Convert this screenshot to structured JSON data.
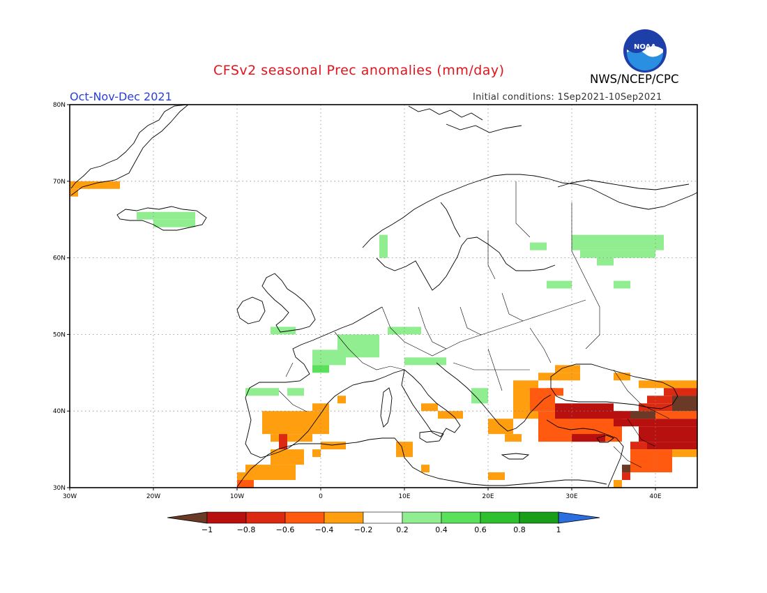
{
  "header": {
    "title": "CFSv2 seasonal Prec anomalies (mm/day)",
    "season": "Oct-Nov-Dec 2021",
    "initial_conditions": "Initial conditions: 1Sep2021-10Sep2021",
    "agency": "NWS/NCEP/CPC",
    "logo_text": "NOAA"
  },
  "map": {
    "projection": "equirectangular",
    "lon_range": [
      -30,
      45
    ],
    "lat_range": [
      30,
      80
    ],
    "lon_ticks": [
      {
        "value": -30,
        "label": "30W"
      },
      {
        "value": -20,
        "label": "20W"
      },
      {
        "value": -10,
        "label": "10W"
      },
      {
        "value": 0,
        "label": "0"
      },
      {
        "value": 10,
        "label": "10E"
      },
      {
        "value": 20,
        "label": "20E"
      },
      {
        "value": 30,
        "label": "30E"
      },
      {
        "value": 40,
        "label": "40E"
      }
    ],
    "lat_ticks": [
      {
        "value": 30,
        "label": "30N"
      },
      {
        "value": 40,
        "label": "40N"
      },
      {
        "value": 50,
        "label": "50N"
      },
      {
        "value": 60,
        "label": "60N"
      },
      {
        "value": 70,
        "label": "70N"
      },
      {
        "value": 80,
        "label": "80N"
      }
    ],
    "grid": "dotted"
  },
  "legend": {
    "labels": [
      "-1",
      "-0.8",
      "-0.6",
      "-0.4",
      "-0.2",
      "0.2",
      "0.4",
      "0.6",
      "0.8",
      "1"
    ],
    "colors": [
      "#6b3a26",
      "#b80f0f",
      "#dc2a12",
      "#ff5a10",
      "#ff9f10",
      "#ffffff",
      "#90ee90",
      "#5ae05a",
      "#2ec02e",
      "#1a9e1a",
      "#2a6ee0"
    ]
  },
  "anomalies": [
    {
      "lon": -30,
      "lat": 69,
      "w": 6,
      "h": 1,
      "v": -0.3
    },
    {
      "lon": -30,
      "lat": 68,
      "w": 1,
      "h": 1,
      "v": -0.3
    },
    {
      "lon": -22,
      "lat": 65,
      "w": 7,
      "h": 1,
      "v": 0.3
    },
    {
      "lon": -20,
      "lat": 64,
      "w": 5,
      "h": 1,
      "v": 0.3
    },
    {
      "lon": 7,
      "lat": 60,
      "w": 1,
      "h": 3,
      "v": 0.3
    },
    {
      "lon": 25,
      "lat": 61,
      "w": 2,
      "h": 1,
      "v": 0.3
    },
    {
      "lon": 30,
      "lat": 61,
      "w": 11,
      "h": 2,
      "v": 0.3
    },
    {
      "lon": 31,
      "lat": 60,
      "w": 9,
      "h": 1,
      "v": 0.3
    },
    {
      "lon": 33,
      "lat": 59,
      "w": 2,
      "h": 1,
      "v": 0.3
    },
    {
      "lon": 27,
      "lat": 56,
      "w": 3,
      "h": 1,
      "v": 0.3
    },
    {
      "lon": 35,
      "lat": 56,
      "w": 2,
      "h": 1,
      "v": 0.3
    },
    {
      "lon": -6,
      "lat": 50,
      "w": 3,
      "h": 1,
      "v": 0.3
    },
    {
      "lon": 2,
      "lat": 47,
      "w": 5,
      "h": 3,
      "v": 0.3
    },
    {
      "lon": -1,
      "lat": 46,
      "w": 4,
      "h": 2,
      "v": 0.3
    },
    {
      "lon": 8,
      "lat": 50,
      "w": 4,
      "h": 1,
      "v": 0.3
    },
    {
      "lon": 10,
      "lat": 46,
      "w": 5,
      "h": 1,
      "v": 0.3
    },
    {
      "lon": -1,
      "lat": 45,
      "w": 2,
      "h": 1,
      "v": 0.5
    },
    {
      "lon": -9,
      "lat": 42,
      "w": 4,
      "h": 1,
      "v": 0.3
    },
    {
      "lon": -4,
      "lat": 42,
      "w": 2,
      "h": 1,
      "v": 0.3
    },
    {
      "lon": 18,
      "lat": 41,
      "w": 2,
      "h": 2,
      "v": 0.3
    },
    {
      "lon": -1,
      "lat": 40,
      "w": 2,
      "h": 1,
      "v": -0.3
    },
    {
      "lon": 2,
      "lat": 41,
      "w": 1,
      "h": 1,
      "v": -0.3
    },
    {
      "lon": -7,
      "lat": 37,
      "w": 8,
      "h": 3,
      "v": -0.3
    },
    {
      "lon": -6,
      "lat": 36,
      "w": 5,
      "h": 1,
      "v": -0.3
    },
    {
      "lon": -5,
      "lat": 35,
      "w": 1,
      "h": 2,
      "v": -0.7
    },
    {
      "lon": -6,
      "lat": 33,
      "w": 4,
      "h": 2,
      "v": -0.3
    },
    {
      "lon": -9,
      "lat": 31,
      "w": 6,
      "h": 2,
      "v": -0.3
    },
    {
      "lon": -10,
      "lat": 30,
      "w": 2,
      "h": 1,
      "v": -0.5
    },
    {
      "lon": -10,
      "lat": 31,
      "w": 1,
      "h": 1,
      "v": -0.3
    },
    {
      "lon": 0,
      "lat": 35,
      "w": 3,
      "h": 1,
      "v": -0.3
    },
    {
      "lon": -1,
      "lat": 34,
      "w": 1,
      "h": 1,
      "v": -0.3
    },
    {
      "lon": 9,
      "lat": 34,
      "w": 2,
      "h": 2,
      "v": -0.3
    },
    {
      "lon": 12,
      "lat": 32,
      "w": 1,
      "h": 1,
      "v": -0.3
    },
    {
      "lon": 12,
      "lat": 40,
      "w": 2,
      "h": 1,
      "v": -0.3
    },
    {
      "lon": 14,
      "lat": 39,
      "w": 3,
      "h": 1,
      "v": -0.3
    },
    {
      "lon": 20,
      "lat": 37,
      "w": 3,
      "h": 2,
      "v": -0.3
    },
    {
      "lon": 22,
      "lat": 36,
      "w": 2,
      "h": 1,
      "v": -0.3
    },
    {
      "lon": 20,
      "lat": 31,
      "w": 2,
      "h": 1,
      "v": -0.3
    },
    {
      "lon": 23,
      "lat": 39,
      "w": 3,
      "h": 5,
      "v": -0.3
    },
    {
      "lon": 26,
      "lat": 44,
      "w": 5,
      "h": 1,
      "v": -0.3
    },
    {
      "lon": 28,
      "lat": 45,
      "w": 3,
      "h": 1,
      "v": -0.3
    },
    {
      "lon": 35,
      "lat": 44,
      "w": 2,
      "h": 1,
      "v": -0.3
    },
    {
      "lon": 38,
      "lat": 43,
      "w": 7,
      "h": 1,
      "v": -0.3
    },
    {
      "lon": 25,
      "lat": 40,
      "w": 3,
      "h": 3,
      "v": -0.5
    },
    {
      "lon": 27,
      "lat": 42,
      "w": 2,
      "h": 1,
      "v": -0.5
    },
    {
      "lon": 26,
      "lat": 36,
      "w": 10,
      "h": 4,
      "v": -0.5
    },
    {
      "lon": 28,
      "lat": 39,
      "w": 7,
      "h": 2,
      "v": -0.9
    },
    {
      "lon": 35,
      "lat": 39,
      "w": 5,
      "h": 1,
      "v": -0.9
    },
    {
      "lon": 35,
      "lat": 38,
      "w": 10,
      "h": 1,
      "v": -0.9
    },
    {
      "lon": 30,
      "lat": 36,
      "w": 4,
      "h": 1,
      "v": -0.9
    },
    {
      "lon": 38,
      "lat": 36,
      "w": 7,
      "h": 2,
      "v": -0.9
    },
    {
      "lon": 39,
      "lat": 35,
      "w": 6,
      "h": 1,
      "v": -0.9
    },
    {
      "lon": 37,
      "lat": 35,
      "w": 2,
      "h": 1,
      "v": -0.7
    },
    {
      "lon": 37,
      "lat": 32,
      "w": 5,
      "h": 3,
      "v": -0.5
    },
    {
      "lon": 42,
      "lat": 34,
      "w": 3,
      "h": 1,
      "v": -0.3
    },
    {
      "lon": 36,
      "lat": 32,
      "w": 1,
      "h": 1,
      "v": -1.1
    },
    {
      "lon": 36,
      "lat": 31,
      "w": 1,
      "h": 1,
      "v": -0.7
    },
    {
      "lon": 35,
      "lat": 30,
      "w": 1,
      "h": 1,
      "v": -0.3
    },
    {
      "lon": 40,
      "lat": 39,
      "w": 5,
      "h": 1,
      "v": -0.5
    },
    {
      "lon": 38,
      "lat": 40,
      "w": 7,
      "h": 1,
      "v": -0.7
    },
    {
      "lon": 39,
      "lat": 41,
      "w": 6,
      "h": 1,
      "v": -0.7
    },
    {
      "lon": 41,
      "lat": 42,
      "w": 4,
      "h": 1,
      "v": -0.7
    },
    {
      "lon": 42,
      "lat": 40,
      "w": 3,
      "h": 2,
      "v": -1.1
    },
    {
      "lon": 37,
      "lat": 39,
      "w": 3,
      "h": 1,
      "v": -1.1
    }
  ]
}
